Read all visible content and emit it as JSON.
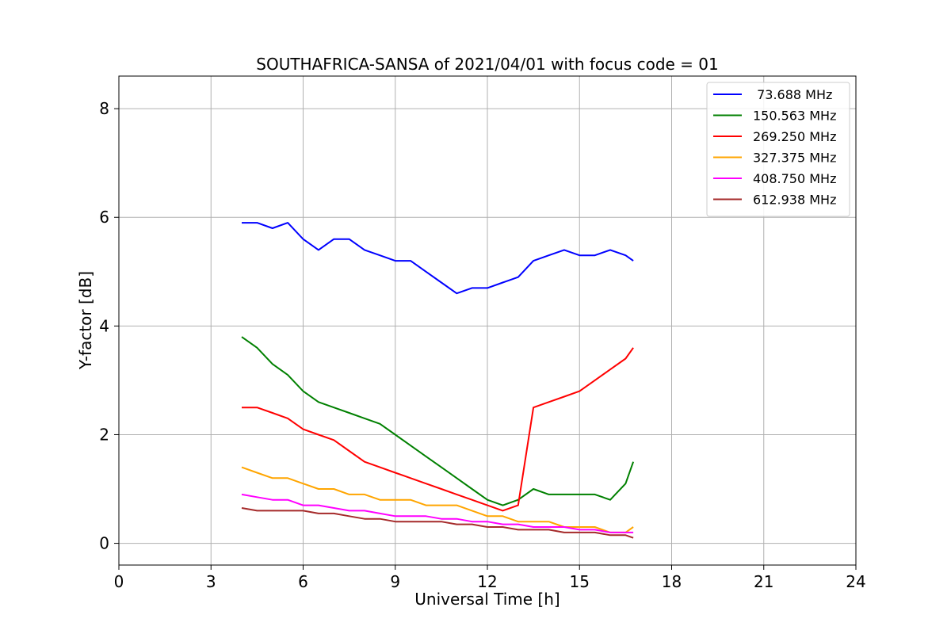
{
  "chart_data": {
    "type": "line",
    "title": "SOUTHAFRICA-SANSA of 2021/04/01 with focus code = 01",
    "xlabel": "Universal Time [h]",
    "ylabel": "Y-factor [dB]",
    "xlim": [
      0,
      24
    ],
    "ylim": [
      -0.4,
      8.6
    ],
    "xticks": [
      0,
      3,
      6,
      9,
      12,
      15,
      18,
      21,
      24
    ],
    "yticks": [
      0,
      2,
      4,
      6,
      8
    ],
    "grid": true,
    "legend_position": "top-right",
    "series": [
      {
        "name": " 73.688 MHz",
        "color": "#0000ff",
        "x": [
          4.0,
          4.5,
          5.0,
          5.5,
          6.0,
          6.5,
          7.0,
          7.5,
          8.0,
          8.5,
          9.0,
          9.5,
          10.0,
          10.5,
          11.0,
          11.5,
          12.0,
          12.5,
          13.0,
          13.5,
          14.0,
          14.5,
          15.0,
          15.5,
          16.0,
          16.5,
          16.75
        ],
        "y": [
          5.9,
          5.9,
          5.8,
          5.9,
          5.6,
          5.4,
          5.6,
          5.6,
          5.4,
          5.3,
          5.2,
          5.2,
          5.0,
          4.8,
          4.6,
          4.7,
          4.7,
          4.8,
          4.9,
          5.2,
          5.3,
          5.4,
          5.3,
          5.3,
          5.4,
          5.3,
          5.2
        ]
      },
      {
        "name": "150.563 MHz",
        "color": "#008000",
        "x": [
          4.0,
          4.5,
          5.0,
          5.5,
          6.0,
          6.5,
          7.0,
          7.5,
          8.0,
          8.5,
          9.0,
          9.5,
          10.0,
          10.5,
          11.0,
          11.5,
          12.0,
          12.5,
          13.0,
          13.5,
          14.0,
          14.5,
          15.0,
          15.5,
          16.0,
          16.5,
          16.75
        ],
        "y": [
          3.8,
          3.6,
          3.3,
          3.1,
          2.8,
          2.6,
          2.5,
          2.4,
          2.3,
          2.2,
          2.0,
          1.8,
          1.6,
          1.4,
          1.2,
          1.0,
          0.8,
          0.7,
          0.8,
          1.0,
          0.9,
          0.9,
          0.9,
          0.9,
          0.8,
          1.1,
          1.5
        ]
      },
      {
        "name": "269.250 MHz",
        "color": "#ff0000",
        "x": [
          4.0,
          4.5,
          5.0,
          5.5,
          6.0,
          6.5,
          7.0,
          7.5,
          8.0,
          8.5,
          9.0,
          9.5,
          10.0,
          10.5,
          11.0,
          11.5,
          12.0,
          12.5,
          13.0,
          13.5,
          14.0,
          14.5,
          15.0,
          15.5,
          16.0,
          16.5,
          16.75
        ],
        "y": [
          2.5,
          2.5,
          2.4,
          2.3,
          2.1,
          2.0,
          1.9,
          1.7,
          1.5,
          1.4,
          1.3,
          1.2,
          1.1,
          1.0,
          0.9,
          0.8,
          0.7,
          0.6,
          0.7,
          2.5,
          2.6,
          2.7,
          2.8,
          3.0,
          3.2,
          3.4,
          3.6
        ]
      },
      {
        "name": "327.375 MHz",
        "color": "#ffa500",
        "x": [
          4.0,
          4.5,
          5.0,
          5.5,
          6.0,
          6.5,
          7.0,
          7.5,
          8.0,
          8.5,
          9.0,
          9.5,
          10.0,
          10.5,
          11.0,
          11.5,
          12.0,
          12.5,
          13.0,
          13.5,
          14.0,
          14.5,
          15.0,
          15.5,
          16.0,
          16.5,
          16.75
        ],
        "y": [
          1.4,
          1.3,
          1.2,
          1.2,
          1.1,
          1.0,
          1.0,
          0.9,
          0.9,
          0.8,
          0.8,
          0.8,
          0.7,
          0.7,
          0.7,
          0.6,
          0.5,
          0.5,
          0.4,
          0.4,
          0.4,
          0.3,
          0.3,
          0.3,
          0.2,
          0.2,
          0.3
        ]
      },
      {
        "name": "408.750 MHz",
        "color": "#ff00ff",
        "x": [
          4.0,
          4.5,
          5.0,
          5.5,
          6.0,
          6.5,
          7.0,
          7.5,
          8.0,
          8.5,
          9.0,
          9.5,
          10.0,
          10.5,
          11.0,
          11.5,
          12.0,
          12.5,
          13.0,
          13.5,
          14.0,
          14.5,
          15.0,
          15.5,
          16.0,
          16.5,
          16.75
        ],
        "y": [
          0.9,
          0.85,
          0.8,
          0.8,
          0.7,
          0.7,
          0.65,
          0.6,
          0.6,
          0.55,
          0.5,
          0.5,
          0.5,
          0.45,
          0.45,
          0.4,
          0.4,
          0.35,
          0.35,
          0.3,
          0.3,
          0.3,
          0.25,
          0.25,
          0.2,
          0.2,
          0.2
        ]
      },
      {
        "name": "612.938 MHz",
        "color": "#a52a2a",
        "x": [
          4.0,
          4.5,
          5.0,
          5.5,
          6.0,
          6.5,
          7.0,
          7.5,
          8.0,
          8.5,
          9.0,
          9.5,
          10.0,
          10.5,
          11.0,
          11.5,
          12.0,
          12.5,
          13.0,
          13.5,
          14.0,
          14.5,
          15.0,
          15.5,
          16.0,
          16.5,
          16.75
        ],
        "y": [
          0.65,
          0.6,
          0.6,
          0.6,
          0.6,
          0.55,
          0.55,
          0.5,
          0.45,
          0.45,
          0.4,
          0.4,
          0.4,
          0.4,
          0.35,
          0.35,
          0.3,
          0.3,
          0.25,
          0.25,
          0.25,
          0.2,
          0.2,
          0.2,
          0.15,
          0.15,
          0.1
        ]
      }
    ]
  }
}
